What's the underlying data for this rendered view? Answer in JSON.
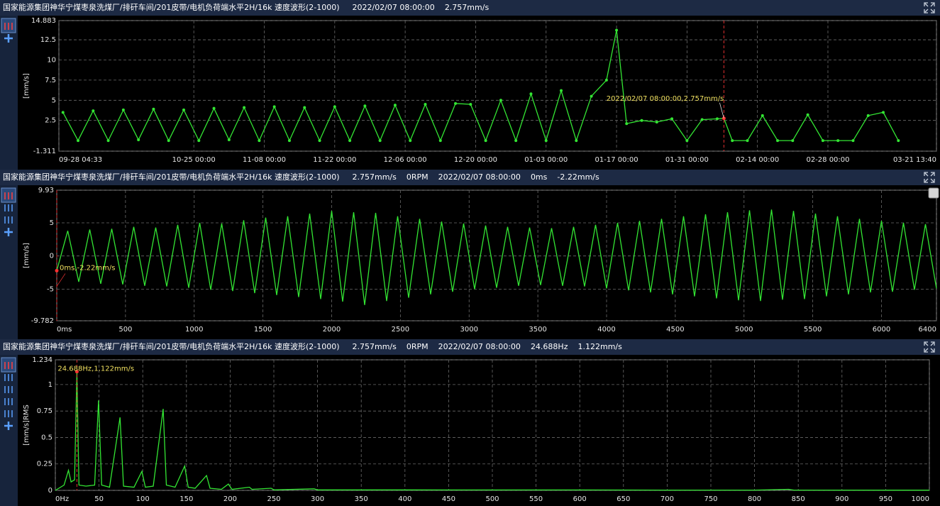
{
  "chart_data": [
    {
      "type": "line",
      "markers": true,
      "color": "#33e533",
      "header": [
        "国家能源集团神华宁煤枣泉洗煤厂/排矸车间/201皮带/电机负荷端水平2H/16k 速度波形(2-1000)",
        "2022/02/07 08:00:00",
        "2.757mm/s"
      ],
      "y_label": "[mm/s]",
      "ylim": [
        -1.311,
        14.883
      ],
      "yticks": [
        -1.311,
        2.5,
        5,
        7.5,
        10,
        12.5,
        14.883
      ],
      "xlim": [
        "09-28 04:33",
        "03-21 13:40"
      ],
      "xticks": [
        "09-28 04:33",
        "10-25 00:00",
        "11-08 00:00",
        "11-22 00:00",
        "12-06 00:00",
        "12-20 00:00",
        "01-03 00:00",
        "01-17 00:00",
        "01-31 00:00",
        "02-14 00:00",
        "02-28 00:00",
        "03-21 13:40"
      ],
      "grid": true,
      "x": [
        "09-29 00:00",
        "10-02 00:00",
        "10-05 00:00",
        "10-08 00:00",
        "10-11 00:00",
        "10-14 00:00",
        "10-17 00:00",
        "10-20 00:00",
        "10-23 00:00",
        "10-26 00:00",
        "10-29 00:00",
        "11-01 00:00",
        "11-04 00:00",
        "11-07 00:00",
        "11-10 00:00",
        "11-13 00:00",
        "11-16 00:00",
        "11-19 00:00",
        "11-22 00:00",
        "11-25 00:00",
        "11-28 00:00",
        "12-01 00:00",
        "12-04 00:00",
        "12-07 00:00",
        "12-10 00:00",
        "12-13 00:00",
        "12-16 00:00",
        "12-19 00:00",
        "12-22 00:00",
        "12-25 00:00",
        "12-28 00:00",
        "12-31 00:00",
        "01-03 00:00",
        "01-06 00:00",
        "01-09 00:00",
        "01-12 00:00",
        "01-15 00:00",
        "01-17 00:00",
        "01-19 00:00",
        "01-22 00:00",
        "01-25 00:00",
        "01-28 00:00",
        "01-31 00:00",
        "02-03 00:00",
        "02-06 00:00",
        "02-07 08:00",
        "02-09 00:00",
        "02-12 00:00",
        "02-15 00:00",
        "02-18 00:00",
        "02-21 00:00",
        "02-24 00:00",
        "02-27 00:00",
        "03-02 00:00",
        "03-05 00:00",
        "03-08 00:00",
        "03-11 00:00",
        "03-14 00:00"
      ],
      "values": [
        3.5,
        0,
        3.7,
        0,
        3.8,
        0.1,
        3.9,
        0,
        3.8,
        0,
        4.0,
        0.1,
        4.1,
        0,
        4.2,
        0,
        4.1,
        0,
        4.2,
        0,
        4.3,
        0,
        4.4,
        0,
        4.5,
        0,
        4.6,
        4.5,
        0,
        5.0,
        0,
        5.8,
        0,
        6.2,
        0,
        5.5,
        7.5,
        13.7,
        2.1,
        2.5,
        2.3,
        2.7,
        0,
        2.6,
        2.7,
        2.757,
        0,
        0,
        3.1,
        0,
        0,
        3.2,
        0,
        0,
        0,
        3.1,
        3.5,
        0
      ],
      "annotation": {
        "text": "2022/02/07 08:00:00,2.757mm/s",
        "x": "02-07 08:00"
      }
    },
    {
      "type": "line",
      "markers": false,
      "color": "#33e533",
      "header": [
        "国家能源集团神华宁煤枣泉洗煤厂/排矸车间/201皮带/电机负荷端水平2H/16k 速度波形(2-1000)",
        "2.757mm/s",
        "0RPM",
        "2022/02/07 08:00:00",
        "0ms",
        "-2.22mm/s"
      ],
      "y_label": "[mm/s]",
      "ylim": [
        -9.782,
        9.93
      ],
      "yticks": [
        -9.782,
        -5,
        0,
        5,
        9.93
      ],
      "xlim": [
        0,
        6400
      ],
      "xticks": [
        {
          "value": 0,
          "label": "0ms"
        },
        500,
        1000,
        1500,
        2000,
        2500,
        3000,
        3500,
        4000,
        4500,
        5000,
        5500,
        6000,
        6400
      ],
      "grid": true,
      "x": [
        0,
        80,
        160,
        240,
        320,
        400,
        480,
        560,
        640,
        720,
        800,
        880,
        960,
        1040,
        1120,
        1200,
        1280,
        1360,
        1440,
        1520,
        1600,
        1680,
        1760,
        1840,
        1920,
        2000,
        2080,
        2160,
        2240,
        2320,
        2400,
        2480,
        2560,
        2640,
        2720,
        2800,
        2880,
        2960,
        3040,
        3120,
        3200,
        3280,
        3360,
        3440,
        3520,
        3600,
        3680,
        3760,
        3840,
        3920,
        4000,
        4080,
        4160,
        4240,
        4320,
        4400,
        4480,
        4560,
        4640,
        4720,
        4800,
        4880,
        4960,
        5040,
        5120,
        5200,
        5280,
        5360,
        5440,
        5520,
        5600,
        5680,
        5760,
        5840,
        5920,
        6000,
        6080,
        6160,
        6240,
        6320,
        6400
      ],
      "values": [
        -2.22,
        3.8,
        -3.9,
        4.0,
        -4.2,
        4.1,
        -4.3,
        4.4,
        -4.5,
        4.3,
        -4.6,
        4.7,
        -4.8,
        5.0,
        -5.1,
        4.9,
        -5.3,
        5.4,
        -5.6,
        5.8,
        -5.9,
        6.0,
        -6.2,
        6.4,
        -6.5,
        6.8,
        -6.9,
        6.6,
        -7.4,
        6.5,
        -6.8,
        6.0,
        -6.3,
        5.6,
        -5.8,
        5.2,
        -5.4,
        4.9,
        -5.0,
        4.6,
        -4.8,
        4.4,
        -4.5,
        4.3,
        -4.4,
        4.2,
        -4.5,
        4.4,
        -4.6,
        4.7,
        -4.9,
        5.0,
        -5.2,
        5.3,
        -5.5,
        5.6,
        -5.8,
        6.0,
        -6.1,
        6.3,
        -6.4,
        6.6,
        -6.7,
        6.9,
        -6.8,
        7.0,
        -6.6,
        6.8,
        -6.5,
        6.4,
        -6.1,
        6.0,
        -5.8,
        5.6,
        -5.5,
        5.3,
        -5.4,
        5.0,
        -5.1,
        4.8,
        -4.9
      ],
      "annotation": {
        "text": "0ms,-2.22mm/s",
        "x": 0
      }
    },
    {
      "type": "line",
      "markers": false,
      "color": "#33e533",
      "header": [
        "国家能源集团神华宁煤枣泉洗煤厂/排矸车间/201皮带/电机负荷端水平2H/16k 速度波形(2-1000)",
        "2.757mm/s",
        "0RPM",
        "2022/02/07 08:00:00",
        "24.688Hz",
        "1.122mm/s"
      ],
      "y_label": "[mm/s]RMS",
      "ylim": [
        0,
        1.234
      ],
      "yticks": [
        0,
        0.25,
        0.5,
        0.75,
        1,
        1.234
      ],
      "xlim": [
        0,
        1000
      ],
      "xticks": [
        {
          "value": 0,
          "label": "0Hz"
        },
        50,
        100,
        150,
        200,
        250,
        300,
        350,
        400,
        450,
        500,
        550,
        600,
        650,
        700,
        750,
        800,
        850,
        900,
        950,
        1000
      ],
      "grid": true,
      "x": [
        0,
        10,
        15,
        18,
        22,
        24.688,
        27,
        35,
        45,
        49.4,
        53,
        62,
        74,
        78,
        90,
        99,
        103,
        112,
        123.4,
        127,
        137,
        148,
        152,
        160,
        173,
        177,
        190,
        198,
        202,
        222,
        225,
        247,
        250,
        296,
        300,
        400,
        500,
        600,
        700,
        800,
        839,
        845,
        1000
      ],
      "values": [
        0,
        0.05,
        0.19,
        0.08,
        0.1,
        1.122,
        0.05,
        0.04,
        0.05,
        0.85,
        0.05,
        0.03,
        0.69,
        0.04,
        0.03,
        0.18,
        0.03,
        0.04,
        0.77,
        0.05,
        0.03,
        0.23,
        0.03,
        0.02,
        0.14,
        0.02,
        0.01,
        0.06,
        0.01,
        0.03,
        0.01,
        0.02,
        0.005,
        0.015,
        0.005,
        0.005,
        0.004,
        0.004,
        0.003,
        0.003,
        0.01,
        0.003,
        0.002
      ],
      "annotation": {
        "text": "24.688Hz,1.122mm/s",
        "x": 24.688
      }
    }
  ]
}
